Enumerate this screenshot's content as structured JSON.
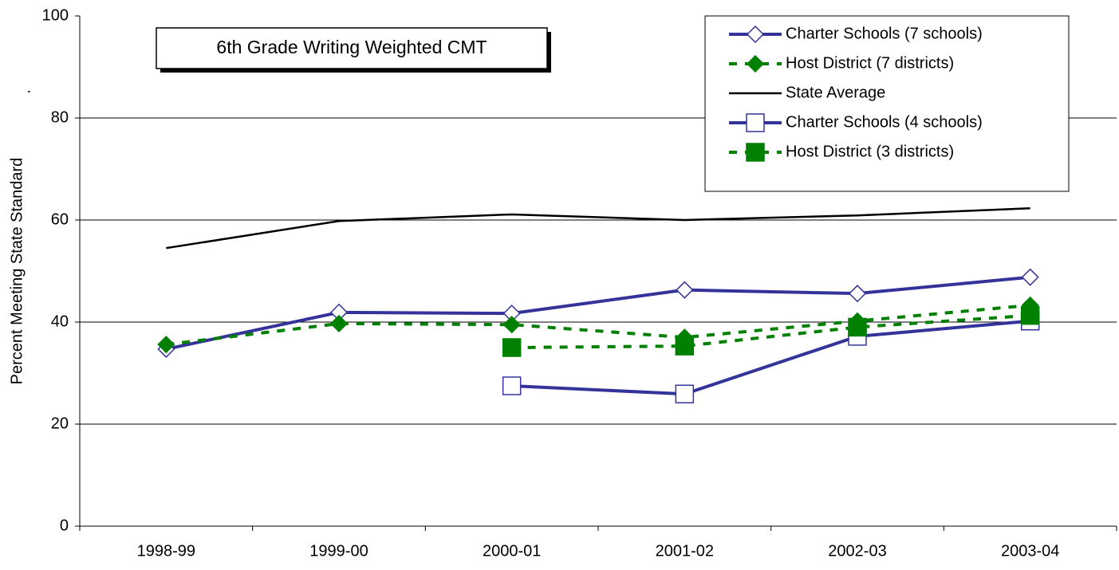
{
  "chart_data": {
    "type": "line",
    "title": "6th Grade Writing Weighted CMT",
    "y_label": "Percent Meeting State Standard",
    "annotation": ".",
    "categories": [
      "1998-99",
      "1999-00",
      "2000-01",
      "2001-02",
      "2002-03",
      "2003-04"
    ],
    "series": [
      {
        "name": "Charter Schools (7 schools)",
        "color": "#333399",
        "marker": "diamond",
        "filled": false,
        "dashed": false,
        "values": [
          34.7,
          41.9,
          41.7,
          46.3,
          45.6,
          48.8
        ]
      },
      {
        "name": "Host District (7 districts)",
        "color": "#008000",
        "marker": "diamond",
        "filled": true,
        "dashed": true,
        "values": [
          35.6,
          39.7,
          39.5,
          37.0,
          40.2,
          43.3
        ]
      },
      {
        "name": "State Average",
        "color": "#000000",
        "marker": "none",
        "filled": false,
        "dashed": false,
        "values": [
          54.5,
          59.8,
          61.1,
          60.0,
          60.9,
          62.3
        ]
      },
      {
        "name": "Charter Schools (4 schools)",
        "color": "#333399",
        "marker": "square",
        "filled": false,
        "dashed": false,
        "values": [
          null,
          null,
          27.5,
          25.9,
          37.2,
          40.2
        ]
      },
      {
        "name": "Host District (3 districts)",
        "color": "#008000",
        "marker": "square",
        "filled": true,
        "dashed": true,
        "values": [
          null,
          null,
          35.0,
          35.3,
          39.0,
          41.3
        ]
      }
    ],
    "ylim": [
      0,
      100
    ],
    "yticks": [
      0,
      20,
      40,
      60,
      80,
      100
    ],
    "grid": true,
    "legend": "top-right"
  }
}
